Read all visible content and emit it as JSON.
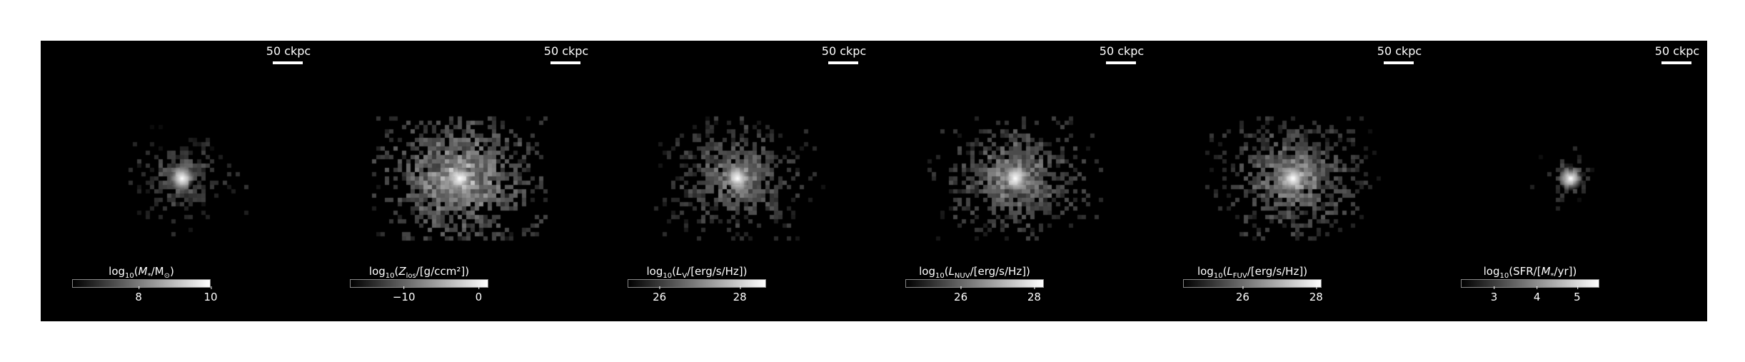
{
  "panels": [
    {
      "id": "stellar-mass",
      "scalebar": "50 ckpc",
      "colorbar": {
        "pre": "log",
        "sub": "10",
        "mid": "(M",
        "sub2": "*",
        "post": "/M",
        "sub3": "⊙",
        "end": ")"
      },
      "ticks": [
        {
          "label": "8",
          "frac": 0.48
        },
        {
          "label": "10",
          "frac": 1.0
        }
      ],
      "blob": {
        "spread": 0.55,
        "fill": 0.35,
        "brightness": 0.55,
        "core": 1.0
      }
    },
    {
      "id": "metallicity",
      "scalebar": "50 ckpc",
      "colorbar": {
        "pre": "log",
        "sub": "10",
        "mid": "(Z",
        "sub2": "los",
        "post": "/[g/ccm²]",
        "sub3": "",
        "end": ")"
      },
      "ticks": [
        {
          "label": "−10",
          "frac": 0.39
        },
        {
          "label": "0",
          "frac": 0.93
        }
      ],
      "blob": {
        "spread": 1.1,
        "fill": 0.55,
        "brightness": 0.85,
        "core": 1.0
      }
    },
    {
      "id": "luminosity-v",
      "scalebar": "50 ckpc",
      "colorbar": {
        "pre": "log",
        "sub": "10",
        "mid": "(L",
        "sub2": "V",
        "post": "/[erg/s/Hz]",
        "sub3": "",
        "end": ")"
      },
      "ticks": [
        {
          "label": "26",
          "frac": 0.23
        },
        {
          "label": "28",
          "frac": 0.81
        }
      ],
      "blob": {
        "spread": 0.85,
        "fill": 0.45,
        "brightness": 0.65,
        "core": 1.0
      }
    },
    {
      "id": "luminosity-nuv",
      "scalebar": "50 ckpc",
      "colorbar": {
        "pre": "log",
        "sub": "10",
        "mid": "(L",
        "sub2": "NUV",
        "post": "/[erg/s/Hz]",
        "sub3": "",
        "end": ")"
      },
      "ticks": [
        {
          "label": "26",
          "frac": 0.4
        },
        {
          "label": "28",
          "frac": 0.93
        }
      ],
      "blob": {
        "spread": 0.9,
        "fill": 0.5,
        "brightness": 0.7,
        "core": 1.0
      }
    },
    {
      "id": "luminosity-fuv",
      "scalebar": "50 ckpc",
      "colorbar": {
        "pre": "log",
        "sub": "10",
        "mid": "(L",
        "sub2": "FUV",
        "post": "/[erg/s/Hz]",
        "sub3": "",
        "end": ")"
      },
      "ticks": [
        {
          "label": "26",
          "frac": 0.43
        },
        {
          "label": "28",
          "frac": 0.96
        }
      ],
      "blob": {
        "spread": 0.9,
        "fill": 0.5,
        "brightness": 0.72,
        "core": 1.0
      }
    },
    {
      "id": "sfr",
      "scalebar": "50 ckpc",
      "colorbar": {
        "pre": "log",
        "sub": "10",
        "mid": "(SFR/[M",
        "sub2": "*",
        "post": "/yr]",
        "sub3": "",
        "end": ")"
      },
      "ticks": [
        {
          "label": "3",
          "frac": 0.24
        },
        {
          "label": "4",
          "frac": 0.55
        },
        {
          "label": "5",
          "frac": 0.84
        }
      ],
      "blob": {
        "spread": 0.3,
        "fill": 0.35,
        "brightness": 0.45,
        "core": 1.0
      }
    }
  ]
}
